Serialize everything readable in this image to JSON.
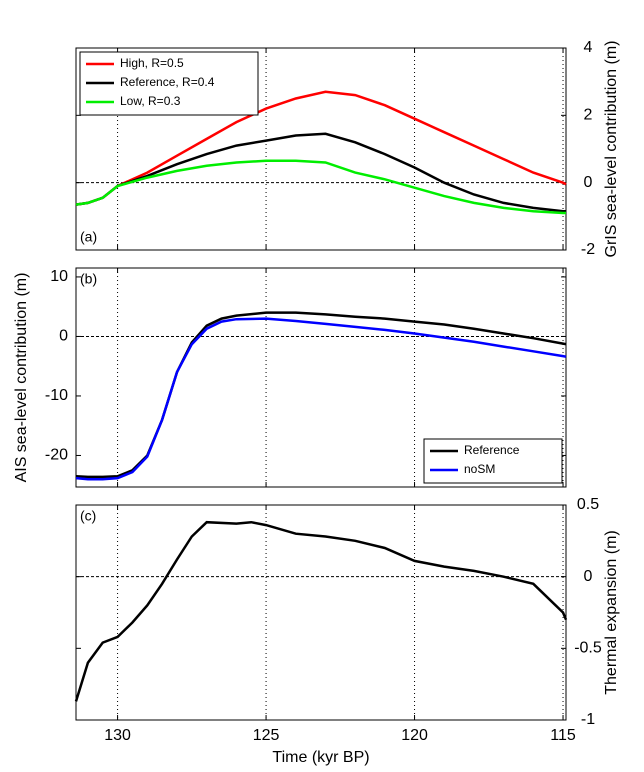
{
  "chart_data": [
    {
      "type": "line",
      "panel_label": "(a)",
      "ylabel": "GrIS sea-level contribution (m)",
      "yaxis_side": "right",
      "xlim": [
        131.4,
        114.9
      ],
      "ylim": [
        -2,
        4
      ],
      "yticks": [
        -2,
        0,
        2,
        4
      ],
      "xticks": [
        130,
        125,
        120,
        115
      ],
      "xtick_labels": false,
      "grid": true,
      "zero_line": true,
      "legend": "upper left",
      "x": [
        131.4,
        131,
        130.5,
        130,
        129,
        128,
        127,
        126,
        125,
        124,
        123,
        122,
        121,
        120,
        119,
        118,
        117,
        116,
        115,
        114.9
      ],
      "series": [
        {
          "name": "High, R=0.5",
          "color": "#ff0000",
          "values": [
            -0.65,
            -0.6,
            -0.45,
            -0.1,
            0.3,
            0.8,
            1.3,
            1.8,
            2.2,
            2.5,
            2.7,
            2.6,
            2.3,
            1.9,
            1.5,
            1.1,
            0.7,
            0.3,
            0.0,
            -0.05
          ]
        },
        {
          "name": "Reference, R=0.4",
          "color": "#000000",
          "values": [
            -0.65,
            -0.6,
            -0.45,
            -0.1,
            0.2,
            0.55,
            0.85,
            1.1,
            1.25,
            1.4,
            1.45,
            1.2,
            0.85,
            0.45,
            0.0,
            -0.35,
            -0.6,
            -0.75,
            -0.85,
            -0.85
          ]
        },
        {
          "name": "Low, R=0.3",
          "color": "#00ee00",
          "values": [
            -0.65,
            -0.6,
            -0.45,
            -0.1,
            0.15,
            0.35,
            0.5,
            0.6,
            0.65,
            0.65,
            0.6,
            0.3,
            0.1,
            -0.15,
            -0.4,
            -0.6,
            -0.75,
            -0.85,
            -0.9,
            -0.9
          ]
        }
      ]
    },
    {
      "type": "line",
      "panel_label": "(b)",
      "ylabel": "AIS sea-level contribution (m)",
      "yaxis_side": "left",
      "xlim": [
        131.4,
        114.9
      ],
      "ylim": [
        -25.3,
        11.5
      ],
      "yticks": [
        -20,
        -10,
        0,
        10
      ],
      "xticks": [
        130,
        125,
        120,
        115
      ],
      "xtick_labels": false,
      "grid": true,
      "zero_line": true,
      "legend": "lower right",
      "x": [
        131.4,
        131,
        130.5,
        130,
        129.5,
        129,
        128.5,
        128,
        127.5,
        127,
        126.5,
        126,
        125,
        124,
        123,
        122,
        121,
        120,
        119,
        118,
        117,
        116,
        115,
        114.9
      ],
      "series": [
        {
          "name": "Reference",
          "color": "#000000",
          "values": [
            -23.5,
            -23.6,
            -23.6,
            -23.5,
            -22.5,
            -20,
            -14,
            -6,
            -1,
            1.8,
            3.0,
            3.5,
            4,
            4,
            3.7,
            3.3,
            3,
            2.5,
            2,
            1.3,
            0.5,
            -0.3,
            -1.2,
            -1.3
          ]
        },
        {
          "name": "noSM",
          "color": "#0000ff",
          "values": [
            -23.8,
            -24,
            -24,
            -23.8,
            -22.8,
            -20.2,
            -14,
            -6,
            -1.3,
            1.3,
            2.5,
            2.9,
            3,
            2.6,
            2.1,
            1.6,
            1.1,
            0.5,
            -0.2,
            -0.9,
            -1.7,
            -2.5,
            -3.3,
            -3.4
          ]
        }
      ]
    },
    {
      "type": "line",
      "panel_label": "(c)",
      "ylabel": "Thermal expansion (m)",
      "xlabel": "Time (kyr BP)",
      "yaxis_side": "right",
      "xlim": [
        131.4,
        114.9
      ],
      "ylim": [
        -1,
        0.5
      ],
      "yticks": [
        -1,
        -0.5,
        0,
        0.5
      ],
      "xticks": [
        130,
        125,
        120,
        115
      ],
      "xtick_labels": true,
      "grid": true,
      "zero_line": true,
      "x": [
        131.4,
        131,
        130.5,
        130,
        129.5,
        129,
        128.5,
        128,
        127.5,
        127,
        126,
        125.5,
        125,
        124,
        123,
        122,
        121,
        120,
        119,
        118,
        117,
        116,
        115,
        114.9
      ],
      "series": [
        {
          "color": "#000000",
          "values": [
            -0.87,
            -0.6,
            -0.46,
            -0.42,
            -0.32,
            -0.2,
            -0.05,
            0.12,
            0.28,
            0.38,
            0.37,
            0.38,
            0.36,
            0.3,
            0.28,
            0.25,
            0.2,
            0.11,
            0.07,
            0.04,
            0.0,
            -0.05,
            -0.25,
            -0.3
          ]
        }
      ]
    }
  ]
}
